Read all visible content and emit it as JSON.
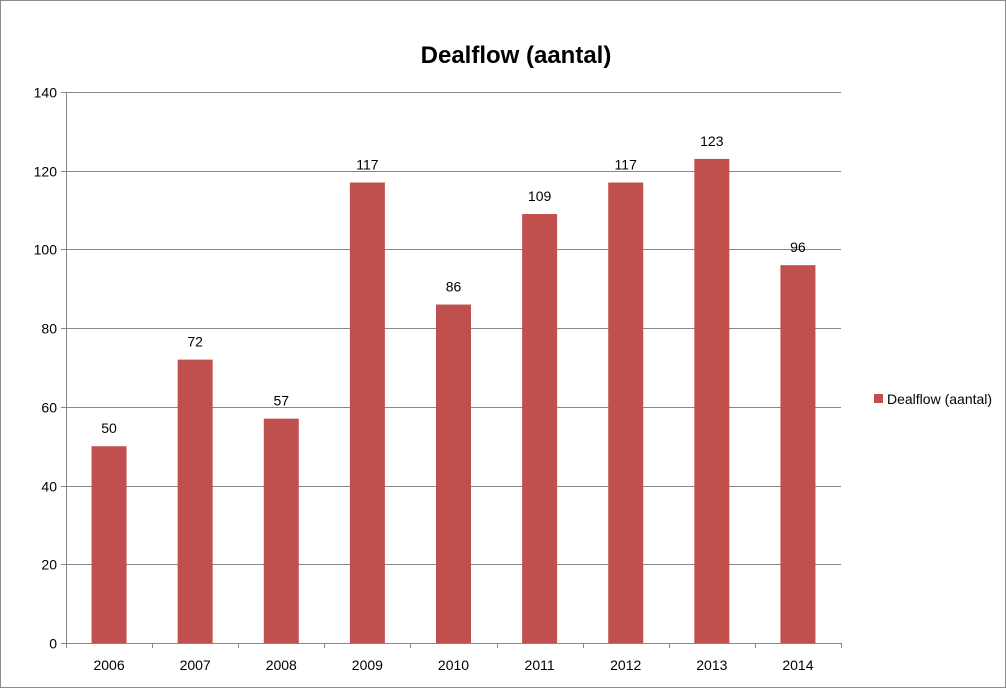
{
  "chart_data": {
    "type": "bar",
    "title": "Dealflow (aantal)",
    "xlabel": "",
    "ylabel": "",
    "categories": [
      "2006",
      "2007",
      "2008",
      "2009",
      "2010",
      "2011",
      "2012",
      "2013",
      "2014"
    ],
    "series": [
      {
        "name": "Dealflow (aantal)",
        "color": "#c0504d",
        "values": [
          50,
          72,
          57,
          117,
          86,
          109,
          117,
          123,
          96
        ]
      }
    ],
    "ylim": [
      0,
      140
    ],
    "yticks": [
      0,
      20,
      40,
      60,
      80,
      100,
      120,
      140
    ],
    "data_labels": true,
    "grid": true,
    "legend_position": "right"
  }
}
